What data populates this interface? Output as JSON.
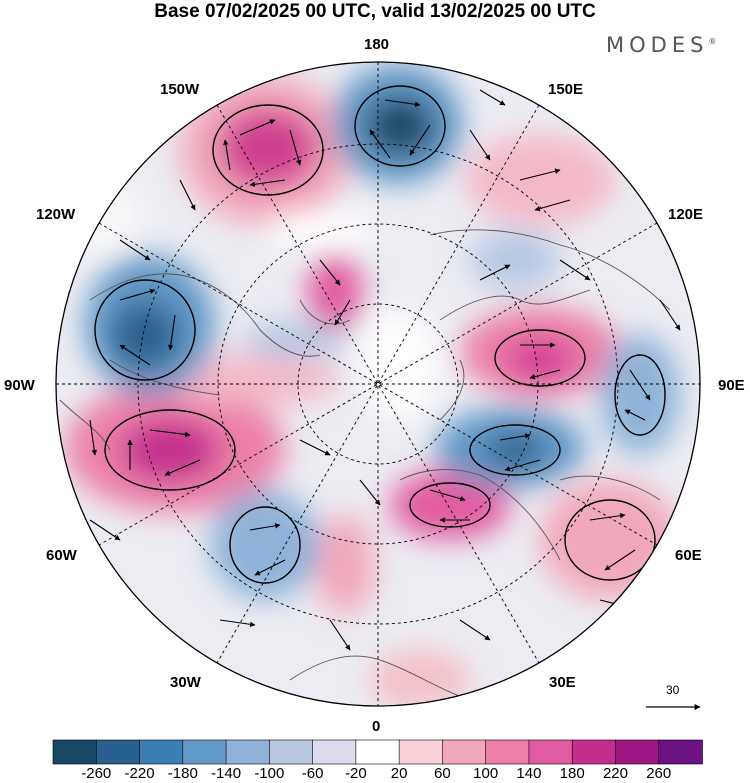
{
  "title": "Base 07/02/2025 00 UTC, valid 13/02/2025 00 UTC",
  "brand": "MODES",
  "brand_mark": "®",
  "map": {
    "projection": "north-polar-stereographic",
    "meridian_labels": [
      "180",
      "150E",
      "120E",
      "90E",
      "60E",
      "30E",
      "0",
      "30W",
      "60W",
      "90W",
      "120W",
      "150W"
    ],
    "reference_vector_label": "30"
  },
  "colorbar": {
    "tick_labels": [
      "-260",
      "-220",
      "-180",
      "-140",
      "-100",
      "-60",
      "-20",
      "20",
      "60",
      "100",
      "140",
      "180",
      "220",
      "260"
    ],
    "colors": [
      "#1c4867",
      "#2a6090",
      "#3d7eb5",
      "#6299c8",
      "#8eb2d8",
      "#b8c8e2",
      "#dcdcec",
      "#ffffff",
      "#f8d2d6",
      "#f2a8bc",
      "#ec80a8",
      "#e25ba0",
      "#c42d8e",
      "#9d1580",
      "#6d1283"
    ]
  },
  "legend": {
    "colors": {
      "land": "#f2f2f2",
      "coast": "#555555"
    }
  }
}
